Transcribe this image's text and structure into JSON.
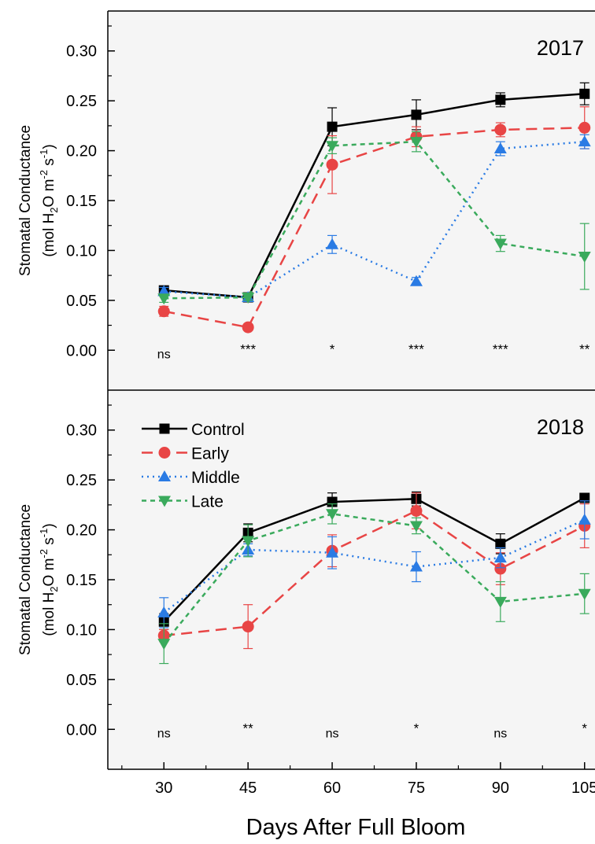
{
  "colors": {
    "Control": "#000000",
    "Early": "#e84545",
    "Middle": "#2a7be4",
    "Late": "#3aaa5c"
  },
  "shared": {
    "xlabel": "Days After Full Bloom",
    "xticks": [
      30,
      45,
      60,
      75,
      90,
      105
    ],
    "legend_entries": [
      "Control",
      "Early",
      "Middle",
      "Late"
    ]
  },
  "chart_data": [
    {
      "type": "line",
      "title": "2017",
      "ylabel_line1": "Stomatal Conductance",
      "ylabel_line2": "(mol H2O m-2 s-1)",
      "x": [
        30,
        45,
        60,
        75,
        90,
        105
      ],
      "xlim": [
        20,
        107
      ],
      "ylim": [
        -0.04,
        0.34
      ],
      "yticks": [
        "0.00",
        "0.05",
        "0.10",
        "0.15",
        "0.20",
        "0.25",
        "0.30"
      ],
      "legend": false,
      "series": [
        {
          "name": "Control",
          "marker": "square",
          "dash": "solid",
          "values": [
            0.06,
            0.053,
            0.224,
            0.236,
            0.251,
            0.257
          ],
          "errors": [
            0.004,
            0.003,
            0.019,
            0.015,
            0.007,
            0.011
          ]
        },
        {
          "name": "Early",
          "marker": "circle",
          "dash": "dashed",
          "values": [
            0.039,
            0.023,
            0.186,
            0.214,
            0.221,
            0.223
          ],
          "errors": [
            0.005,
            0.003,
            0.029,
            0.01,
            0.007,
            0.021
          ]
        },
        {
          "name": "Middle",
          "marker": "triangle-up",
          "dash": "dotted",
          "values": [
            0.059,
            0.053,
            0.106,
            0.069,
            0.202,
            0.209
          ],
          "errors": [
            0.004,
            0.003,
            0.009,
            0.004,
            0.007,
            0.007
          ]
        },
        {
          "name": "Late",
          "marker": "triangle-down",
          "dash": "short-dashed",
          "values": [
            0.052,
            0.053,
            0.205,
            0.209,
            0.107,
            0.094
          ],
          "errors": [
            0.004,
            0.003,
            0.008,
            0.01,
            0.008,
            0.033
          ]
        }
      ],
      "significance": [
        {
          "x": 30,
          "label": "ns"
        },
        {
          "x": 45,
          "label": "***"
        },
        {
          "x": 60,
          "label": "*"
        },
        {
          "x": 75,
          "label": "***"
        },
        {
          "x": 90,
          "label": "***"
        },
        {
          "x": 105,
          "label": "**"
        }
      ]
    },
    {
      "type": "line",
      "title": "2018",
      "ylabel_line1": "Stomatal Conductance",
      "ylabel_line2": "(mol H2O m-2 s-1)",
      "x": [
        30,
        45,
        60,
        75,
        90,
        105
      ],
      "xlim": [
        20,
        107
      ],
      "ylim": [
        -0.04,
        0.34
      ],
      "yticks": [
        "0.00",
        "0.05",
        "0.10",
        "0.15",
        "0.20",
        "0.25",
        "0.30"
      ],
      "legend": "top-left",
      "series": [
        {
          "name": "Control",
          "marker": "square",
          "dash": "solid",
          "values": [
            0.108,
            0.197,
            0.228,
            0.231,
            0.186,
            0.232
          ],
          "errors": [
            0.008,
            0.009,
            0.009,
            0.007,
            0.01,
            0.004
          ]
        },
        {
          "name": "Early",
          "marker": "circle",
          "dash": "dashed",
          "values": [
            0.094,
            0.103,
            0.179,
            0.219,
            0.161,
            0.204
          ],
          "errors": [
            0.006,
            0.022,
            0.016,
            0.018,
            0.016,
            0.022
          ]
        },
        {
          "name": "Middle",
          "marker": "triangle-up",
          "dash": "dotted",
          "values": [
            0.117,
            0.18,
            0.177,
            0.163,
            0.172,
            0.21
          ],
          "errors": [
            0.015,
            0.006,
            0.016,
            0.015,
            0.01,
            0.019
          ]
        },
        {
          "name": "Late",
          "marker": "triangle-down",
          "dash": "short-dashed",
          "values": [
            0.086,
            0.189,
            0.216,
            0.204,
            0.128,
            0.136
          ],
          "errors": [
            0.02,
            0.016,
            0.01,
            0.008,
            0.02,
            0.02
          ]
        }
      ],
      "significance": [
        {
          "x": 30,
          "label": "ns"
        },
        {
          "x": 45,
          "label": "**"
        },
        {
          "x": 60,
          "label": "ns"
        },
        {
          "x": 75,
          "label": "*"
        },
        {
          "x": 90,
          "label": "ns"
        },
        {
          "x": 105,
          "label": "*"
        }
      ]
    }
  ]
}
